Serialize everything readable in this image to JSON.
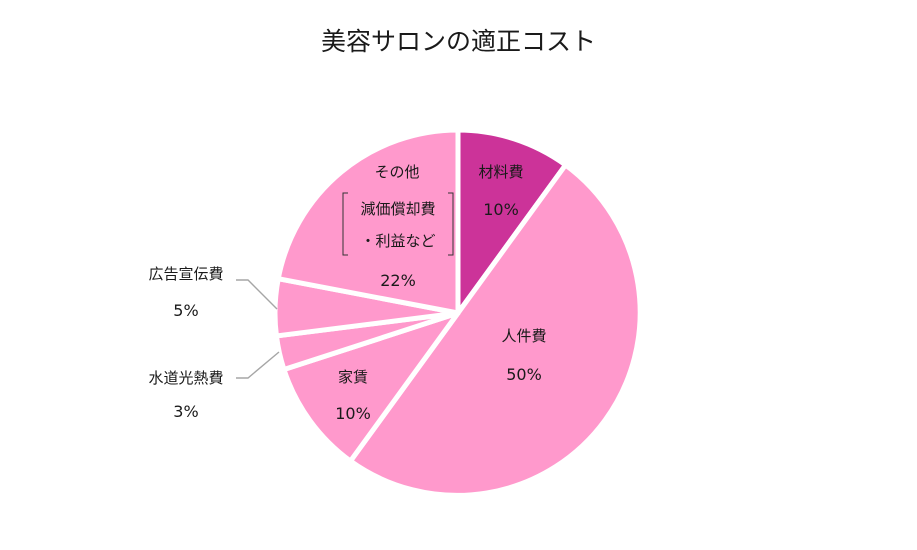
{
  "chart_data": {
    "type": "pie",
    "title": "美容サロンの適正コスト",
    "slices": [
      {
        "label": "材料費",
        "value": 10,
        "value_label": "10%",
        "color": "#cc3399"
      },
      {
        "label": "人件費",
        "value": 50,
        "value_label": "50%",
        "color": "#ff99cc"
      },
      {
        "label": "家賃",
        "value": 10,
        "value_label": "10%",
        "color": "#ff99cc"
      },
      {
        "label": "水道光熱費",
        "value": 3,
        "value_label": "3%",
        "color": "#ff99cc"
      },
      {
        "label": "広告宣伝費",
        "value": 5,
        "value_label": "5%",
        "color": "#ff99cc"
      },
      {
        "label": "その他",
        "sublabel_lines": [
          "減価償却費",
          "・利益など"
        ],
        "value": 22,
        "value_label": "22%",
        "color": "#ff99cc"
      }
    ],
    "start_angle": "12 o'clock",
    "direction": "clockwise",
    "legend": "none"
  }
}
